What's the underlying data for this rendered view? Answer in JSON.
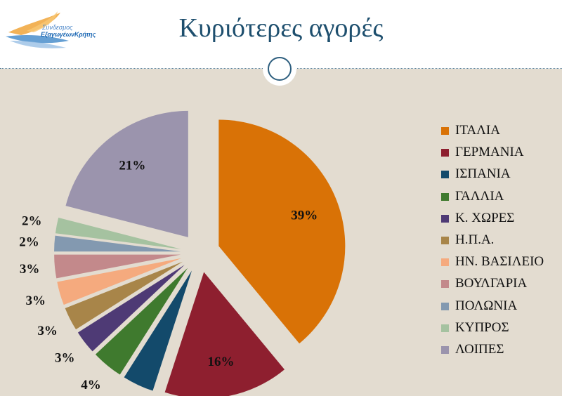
{
  "header": {
    "title": "Κυριότερες αγορές",
    "logo_line1": "Σύνδεσμος",
    "logo_line2": "ΕξαγωγέωνΚρήτης"
  },
  "chart_data": {
    "type": "pie",
    "title": "Κυριότερες αγορές",
    "unit": "%",
    "legend_position": "right",
    "slices": [
      {
        "name": "ΙΤΑΛΙΑ",
        "value": 39,
        "label": "39%",
        "color": "#d97206"
      },
      {
        "name": "ΓΕΡΜΑΝΙΑ",
        "value": 16,
        "label": "16%",
        "color": "#8e1f2f"
      },
      {
        "name": "ΙΣΠΑΝΙΑ",
        "value": 4,
        "label": "4%",
        "color": "#134a6b"
      },
      {
        "name": "ΓΑΛΛΙΑ",
        "value": 4,
        "label": "4%",
        "color": "#3f7a2e"
      },
      {
        "name": "Κ. ΧΩΡΕΣ",
        "value": 3,
        "label": "3%",
        "color": "#4e3a75"
      },
      {
        "name": "Η.Π.Α.",
        "value": 3,
        "label": "3%",
        "color": "#a88549"
      },
      {
        "name": "ΗΝ. ΒΑΣΙΛΕΙΟ",
        "value": 3,
        "label": "3%",
        "color": "#f5aa7e"
      },
      {
        "name": "ΒΟΥΛΓΑΡΙΑ",
        "value": 3,
        "label": "3%",
        "color": "#c3898b"
      },
      {
        "name": "ΠΟΛΩΝΙΑ",
        "value": 2,
        "label": "2%",
        "color": "#8399b0"
      },
      {
        "name": "ΚΥΠΡΟΣ",
        "value": 2,
        "label": "2%",
        "color": "#a5c2a0"
      },
      {
        "name": "ΛΟΙΠΕΣ",
        "value": 21,
        "label": "21%",
        "color": "#9b94ad"
      }
    ]
  }
}
